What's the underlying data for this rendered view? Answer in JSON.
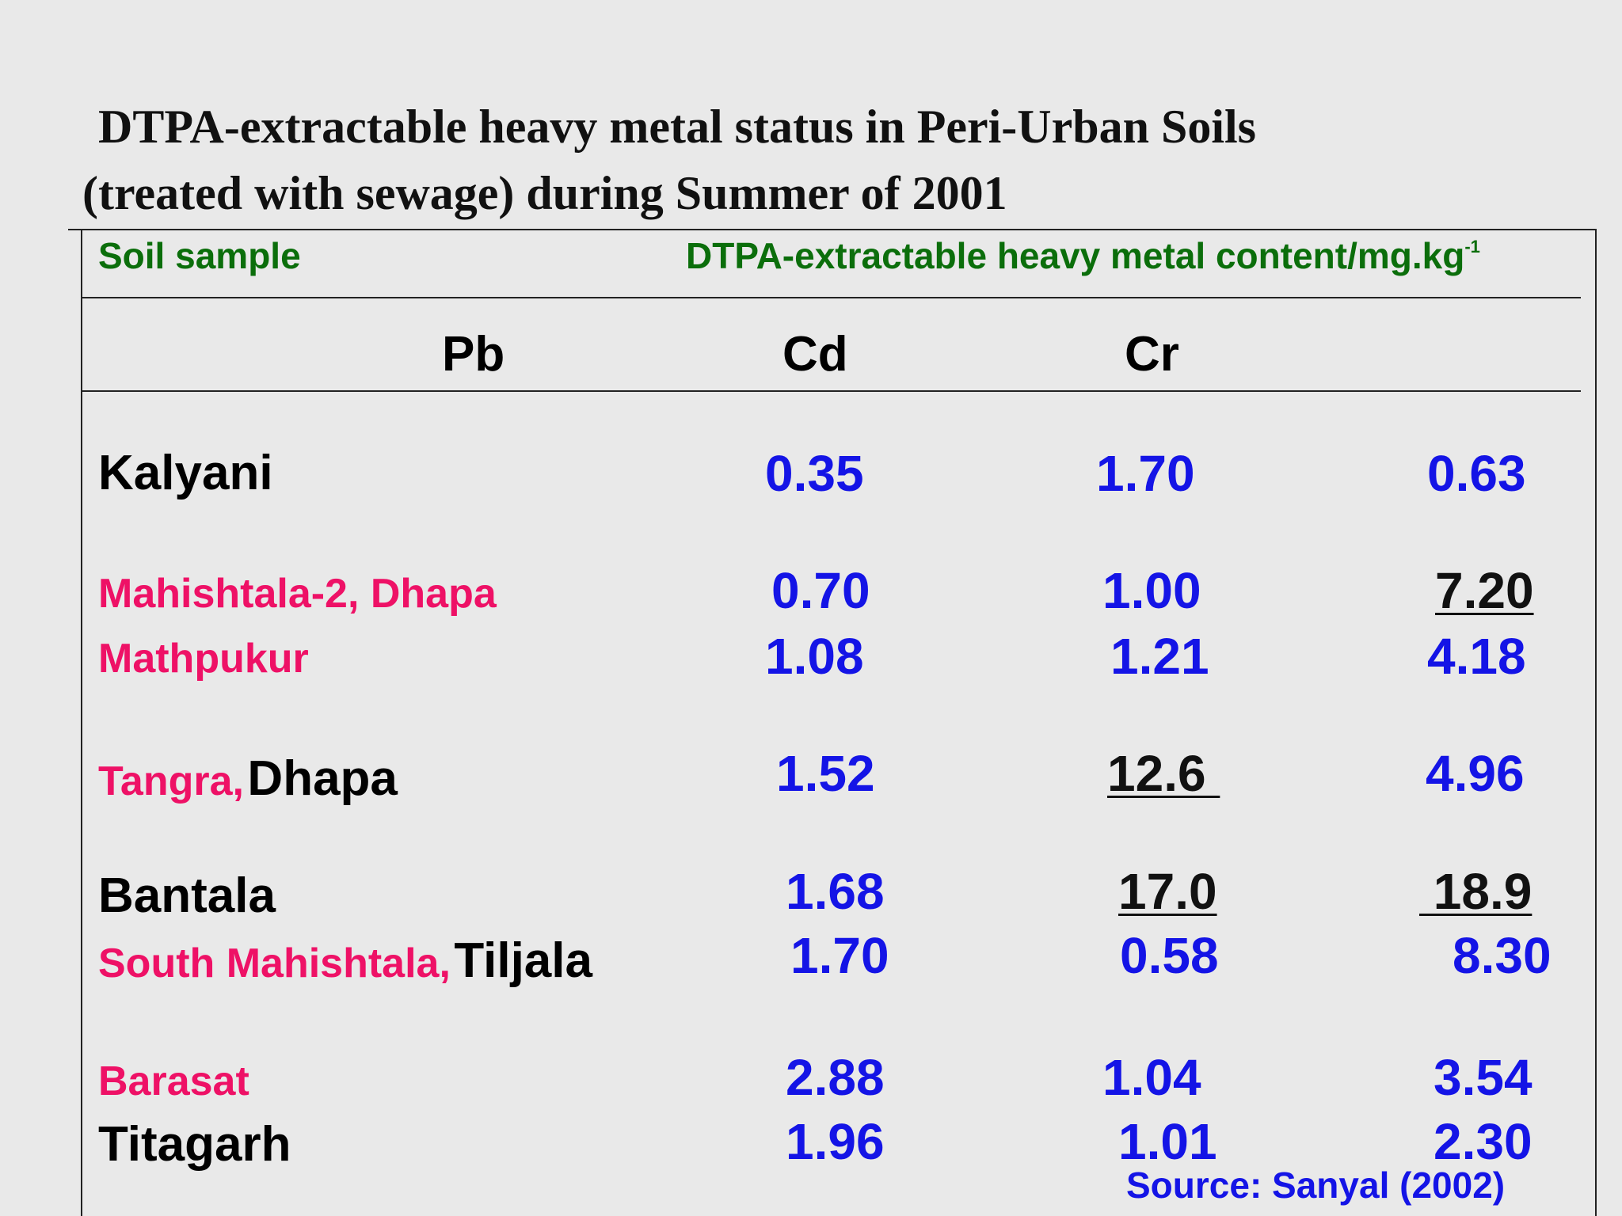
{
  "title": {
    "line1": "DTPA-extractable heavy metal status in Peri-Urban Soils",
    "line2": "(treated with sewage) during Summer of 2001"
  },
  "table": {
    "header_left": "Soil sample",
    "header_right": "DTPA-extractable heavy metal content/mg.kg",
    "header_right_sup": "-1",
    "columns": [
      "Pb",
      "Cd",
      "Cr"
    ],
    "rows": [
      {
        "label_pink": "",
        "label_black": "Kalyani",
        "values": [
          "0.35",
          "1.70",
          "0.63"
        ],
        "underline": [
          false,
          false,
          false
        ]
      },
      {
        "label_pink": "Mahishtala-2, Dhapa",
        "label_black": "",
        "values": [
          "0.70",
          "1.00",
          "7.20"
        ],
        "underline": [
          false,
          false,
          true
        ]
      },
      {
        "label_pink": "Mathpukur",
        "label_black": "",
        "values": [
          "1.08",
          "1.21",
          "4.18"
        ],
        "underline": [
          false,
          false,
          false
        ]
      },
      {
        "label_pink": "Tangra,",
        "label_black": "Dhapa",
        "values": [
          "1.52",
          "12.6 ",
          "4.96"
        ],
        "underline": [
          false,
          true,
          false
        ]
      },
      {
        "label_pink": "",
        "label_black": "Bantala",
        "values": [
          "1.68",
          "17.0",
          " 18.9"
        ],
        "underline": [
          false,
          true,
          true
        ]
      },
      {
        "label_pink": "South Mahishtala,",
        "label_black": "Tiljala",
        "values": [
          "1.70",
          "0.58",
          "8.30"
        ],
        "underline": [
          false,
          false,
          false
        ]
      },
      {
        "label_pink": "Barasat",
        "label_black": "",
        "values": [
          "2.88",
          "1.04",
          "3.54"
        ],
        "underline": [
          false,
          false,
          false
        ]
      },
      {
        "label_pink": "",
        "label_black": "Titagarh",
        "values": [
          "1.96",
          "1.01",
          "2.30"
        ],
        "underline": [
          false,
          false,
          false
        ]
      }
    ]
  },
  "source": "Source: Sanyal (2002)"
}
